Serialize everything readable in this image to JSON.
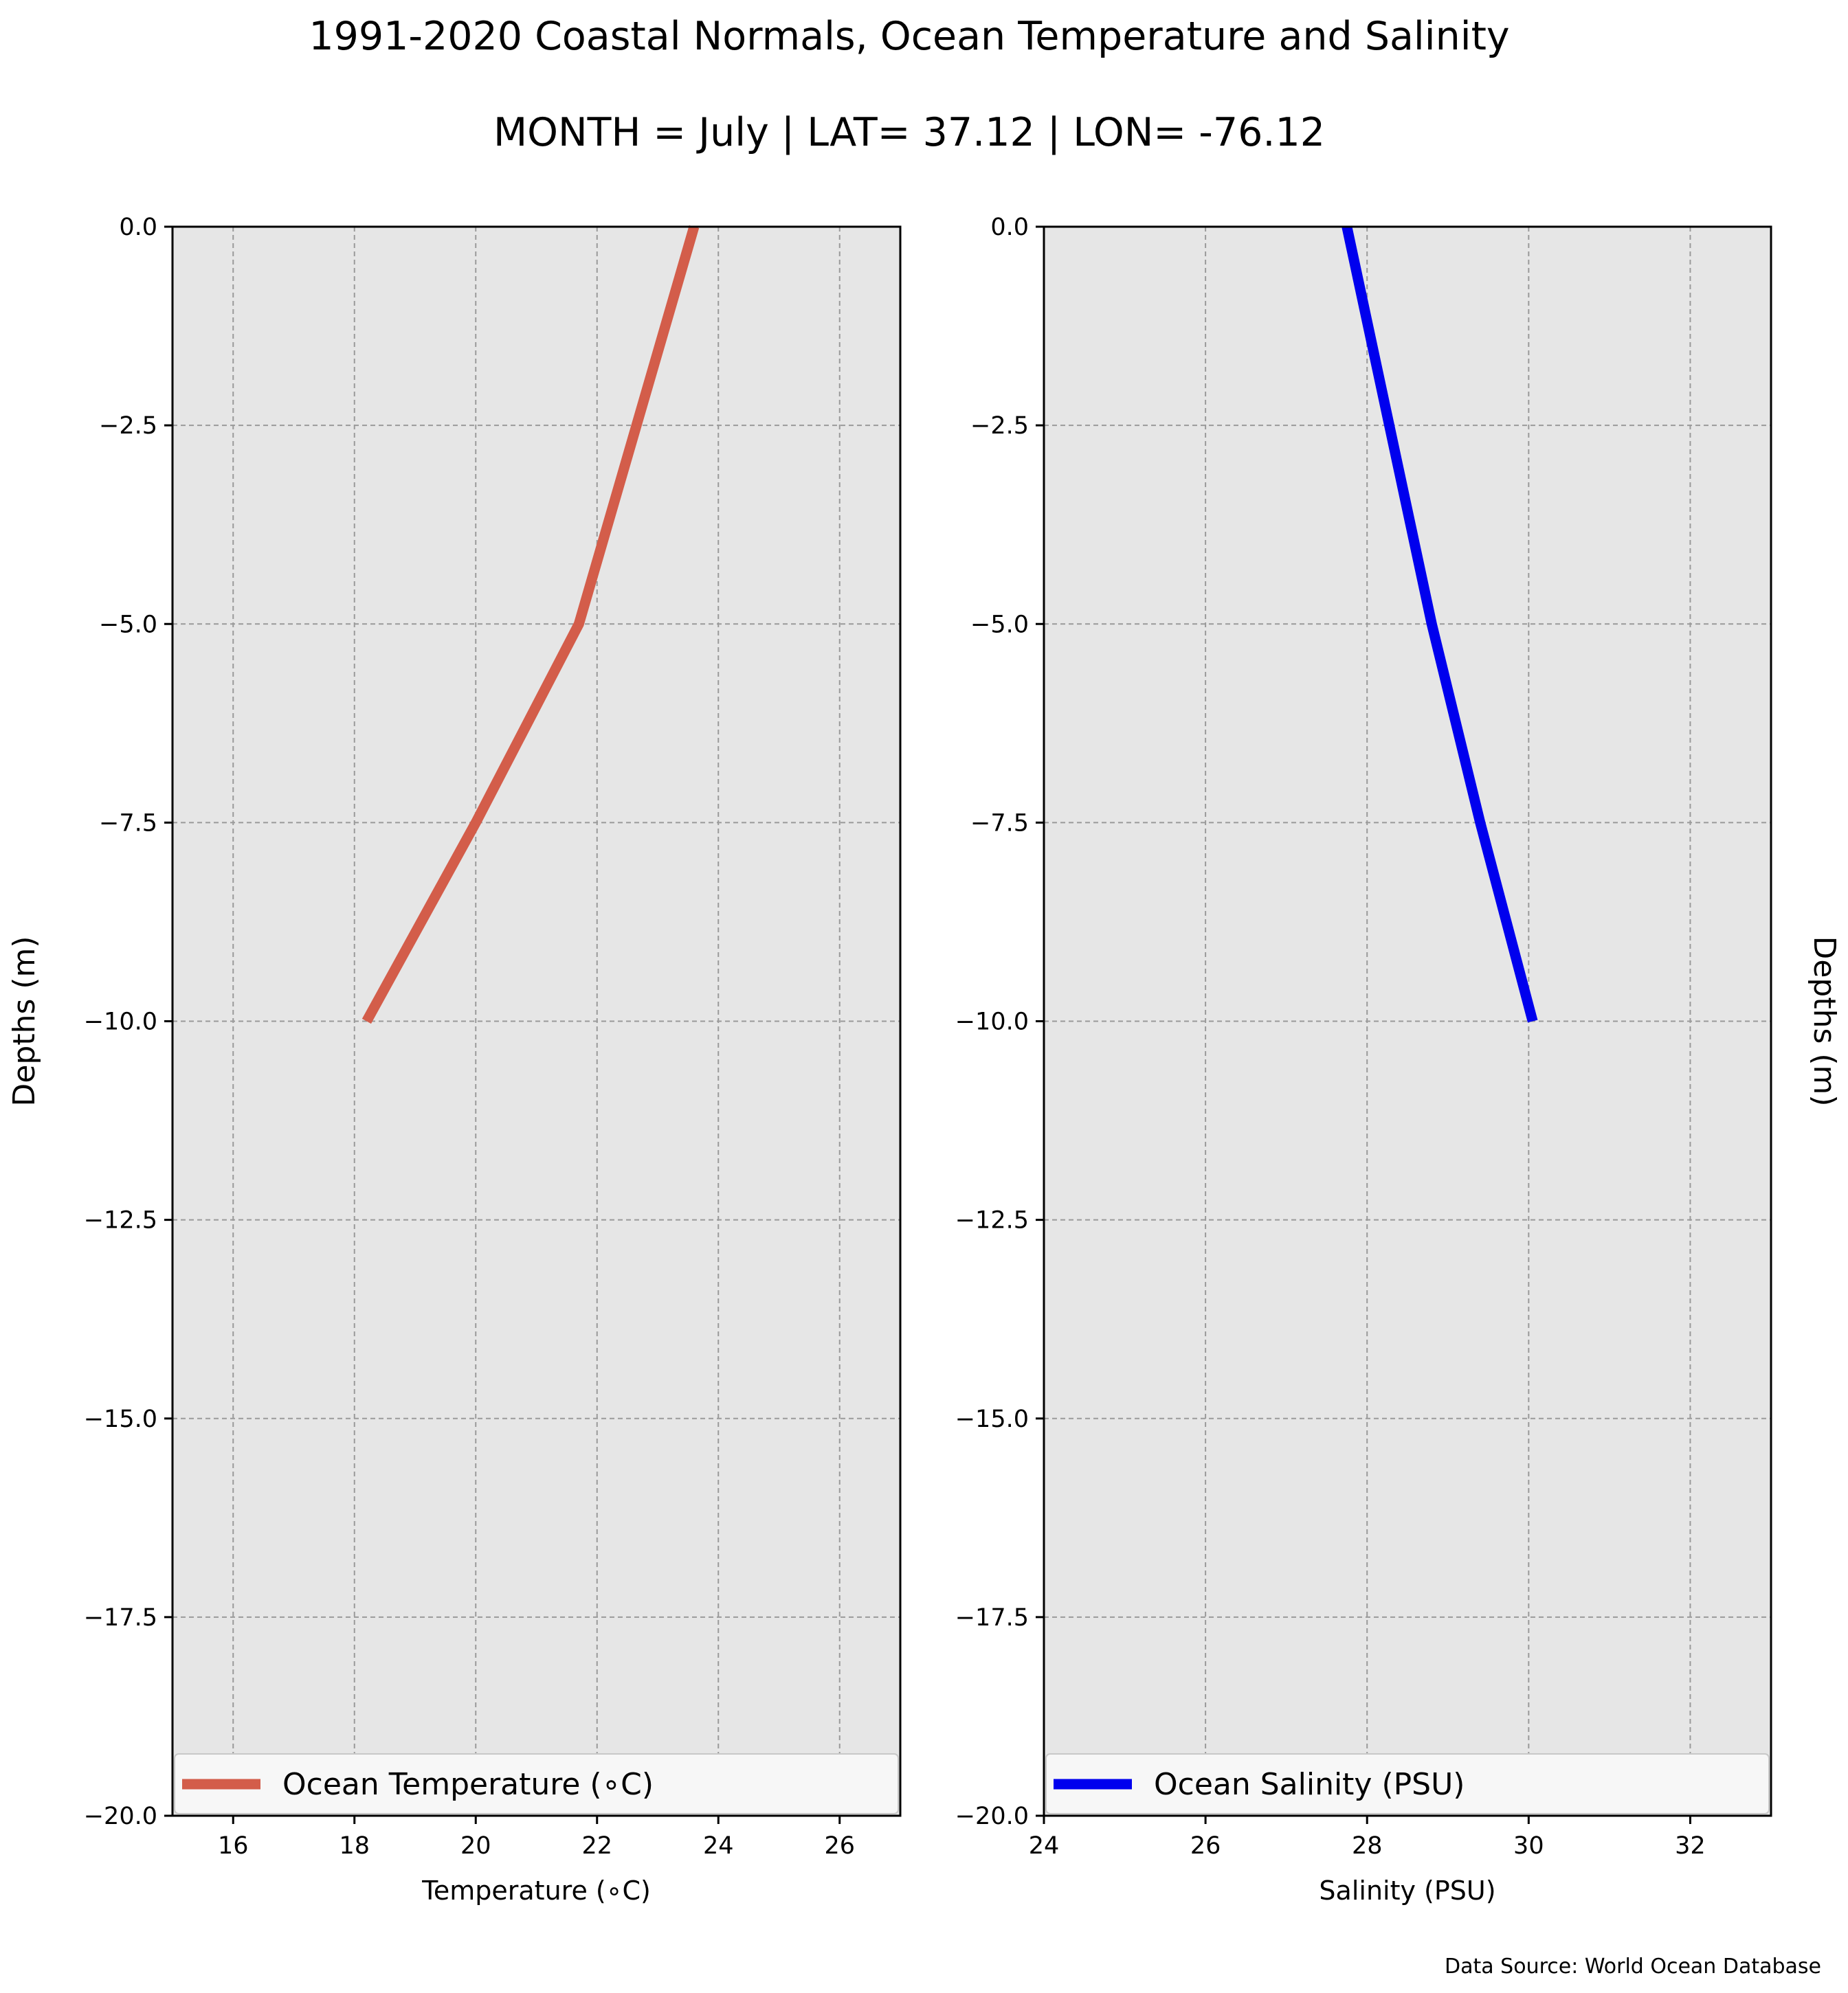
{
  "figure": {
    "title": "1991-2020 Coastal Normals, Ocean Temperature and Salinity",
    "subtitle": "MONTH = July | LAT= 37.12 | LON= -76.12",
    "source_note": "Data Source: World Ocean Database"
  },
  "colors": {
    "plot_background": "#e6e6e6",
    "grid": "#9a9a9a",
    "temperature_line": "#d35d4a",
    "salinity_line": "#0000ee"
  },
  "chart_data": [
    {
      "type": "line",
      "orientation": "vertical-profile",
      "xlabel": "Temperature ($^\\circ$C)",
      "xlabel_display": "Temperature (∘C)",
      "ylabel": "Depths (m)",
      "xlim": [
        15,
        27
      ],
      "ylim": [
        -20,
        0
      ],
      "xticks": [
        16,
        18,
        20,
        22,
        24,
        26
      ],
      "xtick_labels": [
        "16",
        "18",
        "20",
        "22",
        "24",
        "26"
      ],
      "yticks": [
        0,
        -2.5,
        -5,
        -7.5,
        -10,
        -12.5,
        -15,
        -17.5,
        -20
      ],
      "ytick_labels": [
        "0.0",
        "−2.5",
        "−5.0",
        "−7.5",
        "−10.0",
        "−12.5",
        "−15.0",
        "−17.5",
        "−20.0"
      ],
      "grid": true,
      "legend": "bottom",
      "series": [
        {
          "name": "Ocean Temperature (∘C)",
          "x": [
            23.6,
            21.7,
            20.0,
            18.2
          ],
          "y": [
            0,
            -5,
            -7.5,
            -10
          ]
        }
      ]
    },
    {
      "type": "line",
      "orientation": "vertical-profile",
      "xlabel": "Salinity (PSU)",
      "ylabel": "Depths (m)",
      "ylabel_side": "right",
      "xlim": [
        24,
        33
      ],
      "ylim": [
        -20,
        0
      ],
      "xticks": [
        24,
        26,
        28,
        30,
        32
      ],
      "xtick_labels": [
        "24",
        "26",
        "28",
        "30",
        "32"
      ],
      "yticks": [
        0,
        -2.5,
        -5,
        -7.5,
        -10,
        -12.5,
        -15,
        -17.5,
        -20
      ],
      "ytick_labels": [
        "0.0",
        "−2.5",
        "−5.0",
        "−7.5",
        "−10.0",
        "−12.5",
        "−15.0",
        "−17.5",
        "−20.0"
      ],
      "grid": true,
      "legend": "bottom",
      "series": [
        {
          "name": "Ocean Salinity (PSU)",
          "x": [
            27.75,
            28.8,
            29.4,
            30.05
          ],
          "y": [
            0,
            -5,
            -7.5,
            -10
          ]
        }
      ]
    }
  ]
}
